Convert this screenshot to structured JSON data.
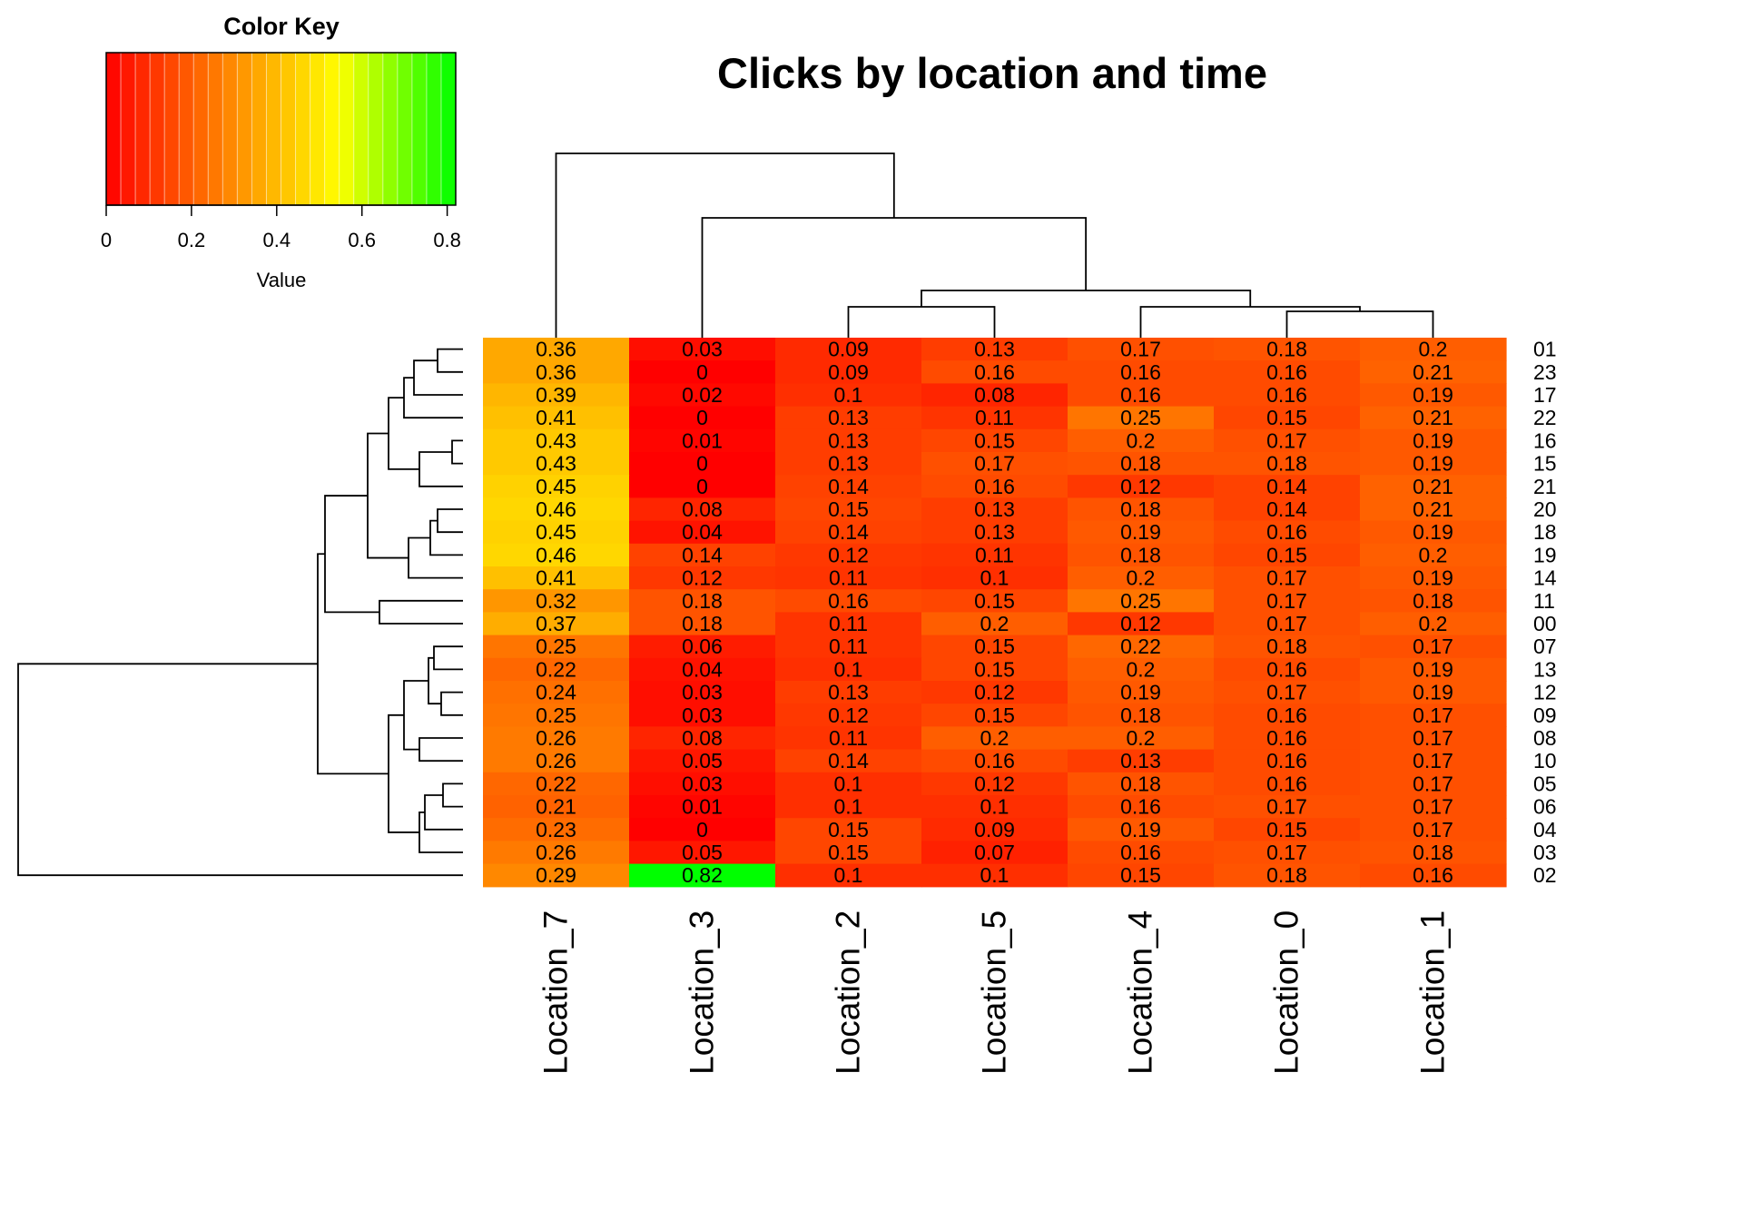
{
  "chart_data": {
    "type": "heatmap",
    "title": "Clicks by location and time",
    "columns": [
      "Location_7",
      "Location_3",
      "Location_2",
      "Location_5",
      "Location_4",
      "Location_0",
      "Location_1"
    ],
    "rows": [
      "01",
      "23",
      "17",
      "22",
      "16",
      "15",
      "21",
      "20",
      "18",
      "19",
      "14",
      "11",
      "00",
      "07",
      "13",
      "12",
      "09",
      "08",
      "10",
      "05",
      "06",
      "04",
      "03",
      "02"
    ],
    "values": [
      [
        0.36,
        0.03,
        0.09,
        0.13,
        0.17,
        0.18,
        0.2
      ],
      [
        0.36,
        0,
        0.09,
        0.16,
        0.16,
        0.16,
        0.21
      ],
      [
        0.39,
        0.02,
        0.1,
        0.08,
        0.16,
        0.16,
        0.19
      ],
      [
        0.41,
        0,
        0.13,
        0.11,
        0.25,
        0.15,
        0.21
      ],
      [
        0.43,
        0.01,
        0.13,
        0.15,
        0.2,
        0.17,
        0.19
      ],
      [
        0.43,
        0,
        0.13,
        0.17,
        0.18,
        0.18,
        0.19
      ],
      [
        0.45,
        0,
        0.14,
        0.16,
        0.12,
        0.14,
        0.21
      ],
      [
        0.46,
        0.08,
        0.15,
        0.13,
        0.18,
        0.14,
        0.21
      ],
      [
        0.45,
        0.04,
        0.14,
        0.13,
        0.19,
        0.16,
        0.19
      ],
      [
        0.46,
        0.14,
        0.12,
        0.11,
        0.18,
        0.15,
        0.2
      ],
      [
        0.41,
        0.12,
        0.11,
        0.1,
        0.2,
        0.17,
        0.19
      ],
      [
        0.32,
        0.18,
        0.16,
        0.15,
        0.25,
        0.17,
        0.18
      ],
      [
        0.37,
        0.18,
        0.11,
        0.2,
        0.12,
        0.17,
        0.2
      ],
      [
        0.25,
        0.06,
        0.11,
        0.15,
        0.22,
        0.18,
        0.17
      ],
      [
        0.22,
        0.04,
        0.1,
        0.15,
        0.2,
        0.16,
        0.19
      ],
      [
        0.24,
        0.03,
        0.13,
        0.12,
        0.19,
        0.17,
        0.19
      ],
      [
        0.25,
        0.03,
        0.12,
        0.15,
        0.18,
        0.16,
        0.17
      ],
      [
        0.26,
        0.08,
        0.11,
        0.2,
        0.2,
        0.16,
        0.17
      ],
      [
        0.26,
        0.05,
        0.14,
        0.16,
        0.13,
        0.16,
        0.17
      ],
      [
        0.22,
        0.03,
        0.1,
        0.12,
        0.18,
        0.16,
        0.17
      ],
      [
        0.21,
        0.01,
        0.1,
        0.1,
        0.16,
        0.17,
        0.17
      ],
      [
        0.23,
        0,
        0.15,
        0.09,
        0.19,
        0.15,
        0.17
      ],
      [
        0.26,
        0.05,
        0.15,
        0.07,
        0.16,
        0.17,
        0.18
      ],
      [
        0.29,
        0.82,
        0.1,
        0.1,
        0.15,
        0.18,
        0.16
      ]
    ],
    "color_scale": {
      "min": 0,
      "max": 0.82,
      "colors": [
        "#ff0000",
        "#ff8000",
        "#ffff00",
        "#00ff00"
      ]
    },
    "color_key": {
      "title": "Color Key",
      "xlabel": "Value",
      "ticks": [
        "0",
        "0.2",
        "0.4",
        "0.6",
        "0.8"
      ],
      "tick_values": [
        0,
        0.2,
        0.4,
        0.6,
        0.8
      ]
    },
    "dendrograms": [
      "top-columns",
      "left-rows"
    ]
  }
}
